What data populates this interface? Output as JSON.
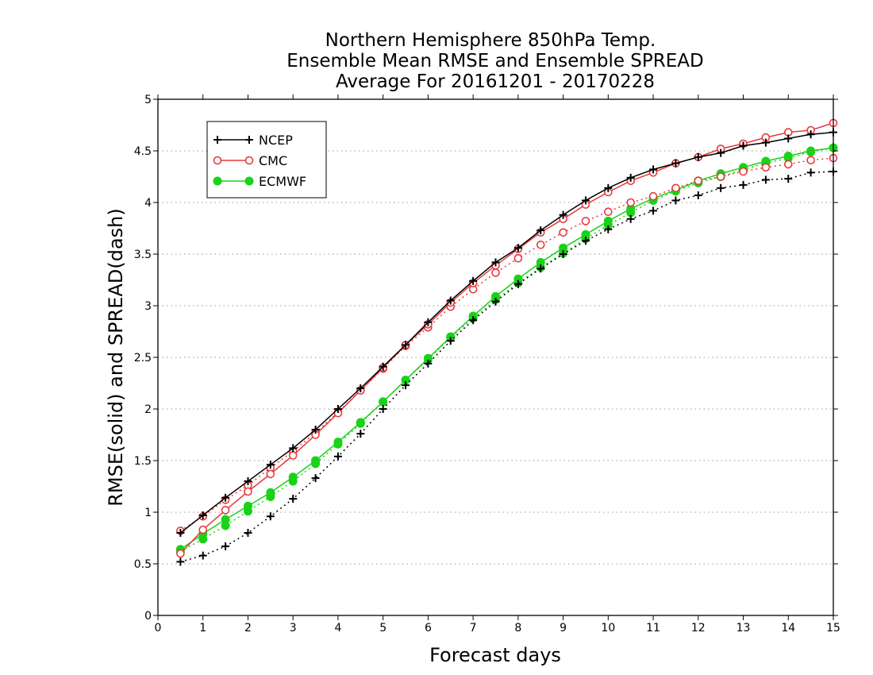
{
  "chart_data": {
    "type": "line",
    "title": [
      "Northern Hemisphere 850hPa Temp.",
      "Ensemble Mean RMSE and Ensemble SPREAD",
      "Average For 20161201 - 20170228"
    ],
    "xlabel": "Forecast days",
    "ylabel": "RMSE(solid) and SPREAD(dash)",
    "xlim": [
      0,
      15
    ],
    "ylim": [
      0,
      5
    ],
    "xticks": [
      "0",
      "1",
      "2",
      "3",
      "4",
      "5",
      "6",
      "7",
      "8",
      "9",
      "10",
      "11",
      "12",
      "13",
      "14",
      "15"
    ],
    "yticks": [
      "0",
      "0.5",
      "1",
      "1.5",
      "2",
      "2.5",
      "3",
      "3.5",
      "4",
      "4.5",
      "5"
    ],
    "grid": "horizontal-dotted",
    "legend_position": "top-left",
    "series": [
      {
        "name": "NCEP",
        "color": "#000000",
        "marker": "plus",
        "x": [
          0.5,
          1,
          1.5,
          2,
          2.5,
          3,
          3.5,
          4,
          4.5,
          5,
          5.5,
          6,
          6.5,
          7,
          7.5,
          8,
          8.5,
          9,
          9.5,
          10,
          10.5,
          11,
          11.5,
          12,
          12.5,
          13,
          13.5,
          14,
          14.5,
          15
        ],
        "rmse": [
          0.8,
          0.97,
          1.14,
          1.3,
          1.46,
          1.62,
          1.8,
          2.0,
          2.2,
          2.41,
          2.62,
          2.84,
          3.05,
          3.24,
          3.42,
          3.56,
          3.73,
          3.88,
          4.02,
          4.14,
          4.24,
          4.32,
          4.38,
          4.44,
          4.48,
          4.55,
          4.58,
          4.62,
          4.66,
          4.68
        ],
        "spread": [
          0.52,
          0.58,
          0.67,
          0.8,
          0.96,
          1.13,
          1.33,
          1.54,
          1.76,
          2.0,
          2.23,
          2.44,
          2.66,
          2.86,
          3.04,
          3.21,
          3.36,
          3.5,
          3.63,
          3.74,
          3.84,
          3.92,
          4.02,
          4.07,
          4.14,
          4.17,
          4.22,
          4.23,
          4.29,
          4.3
        ]
      },
      {
        "name": "CMC",
        "color": "#e8393d",
        "marker": "open-circle",
        "x": [
          0.5,
          1,
          1.5,
          2,
          2.5,
          3,
          3.5,
          4,
          4.5,
          5,
          5.5,
          6,
          6.5,
          7,
          7.5,
          8,
          8.5,
          9,
          9.5,
          10,
          10.5,
          11,
          11.5,
          12,
          12.5,
          13,
          13.5,
          14,
          14.5,
          15
        ],
        "rmse": [
          0.6,
          0.83,
          1.02,
          1.2,
          1.37,
          1.55,
          1.75,
          1.96,
          2.18,
          2.4,
          2.62,
          2.82,
          3.03,
          3.22,
          3.39,
          3.55,
          3.71,
          3.84,
          3.98,
          4.1,
          4.21,
          4.29,
          4.38,
          4.44,
          4.52,
          4.57,
          4.63,
          4.68,
          4.7,
          4.77
        ],
        "spread": [
          0.82,
          0.96,
          1.12,
          1.26,
          1.43,
          1.59,
          1.77,
          1.97,
          2.18,
          2.39,
          2.61,
          2.79,
          2.99,
          3.16,
          3.32,
          3.46,
          3.59,
          3.71,
          3.82,
          3.91,
          4.0,
          4.06,
          4.14,
          4.21,
          4.25,
          4.3,
          4.34,
          4.37,
          4.41,
          4.43
        ]
      },
      {
        "name": "ECMWF",
        "color": "#19d219",
        "marker": "filled-circle",
        "x": [
          0.5,
          1,
          1.5,
          2,
          2.5,
          3,
          3.5,
          4,
          4.5,
          5,
          5.5,
          6,
          6.5,
          7,
          7.5,
          8,
          8.5,
          9,
          9.5,
          10,
          10.5,
          11,
          11.5,
          12,
          12.5,
          13,
          13.5,
          14,
          14.5,
          15
        ],
        "rmse": [
          0.64,
          0.79,
          0.93,
          1.06,
          1.19,
          1.34,
          1.5,
          1.68,
          1.87,
          2.07,
          2.28,
          2.49,
          2.7,
          2.9,
          3.09,
          3.26,
          3.42,
          3.56,
          3.69,
          3.82,
          3.94,
          4.04,
          4.12,
          4.21,
          4.28,
          4.34,
          4.4,
          4.45,
          4.5,
          4.53
        ],
        "spread": [
          0.62,
          0.74,
          0.87,
          1.01,
          1.15,
          1.3,
          1.47,
          1.66,
          1.86,
          2.07,
          2.28,
          2.48,
          2.69,
          2.88,
          3.06,
          3.22,
          3.37,
          3.51,
          3.65,
          3.78,
          3.9,
          4.02,
          4.11,
          4.19,
          4.25,
          4.32,
          4.38,
          4.43,
          4.49,
          4.53
        ]
      }
    ]
  }
}
